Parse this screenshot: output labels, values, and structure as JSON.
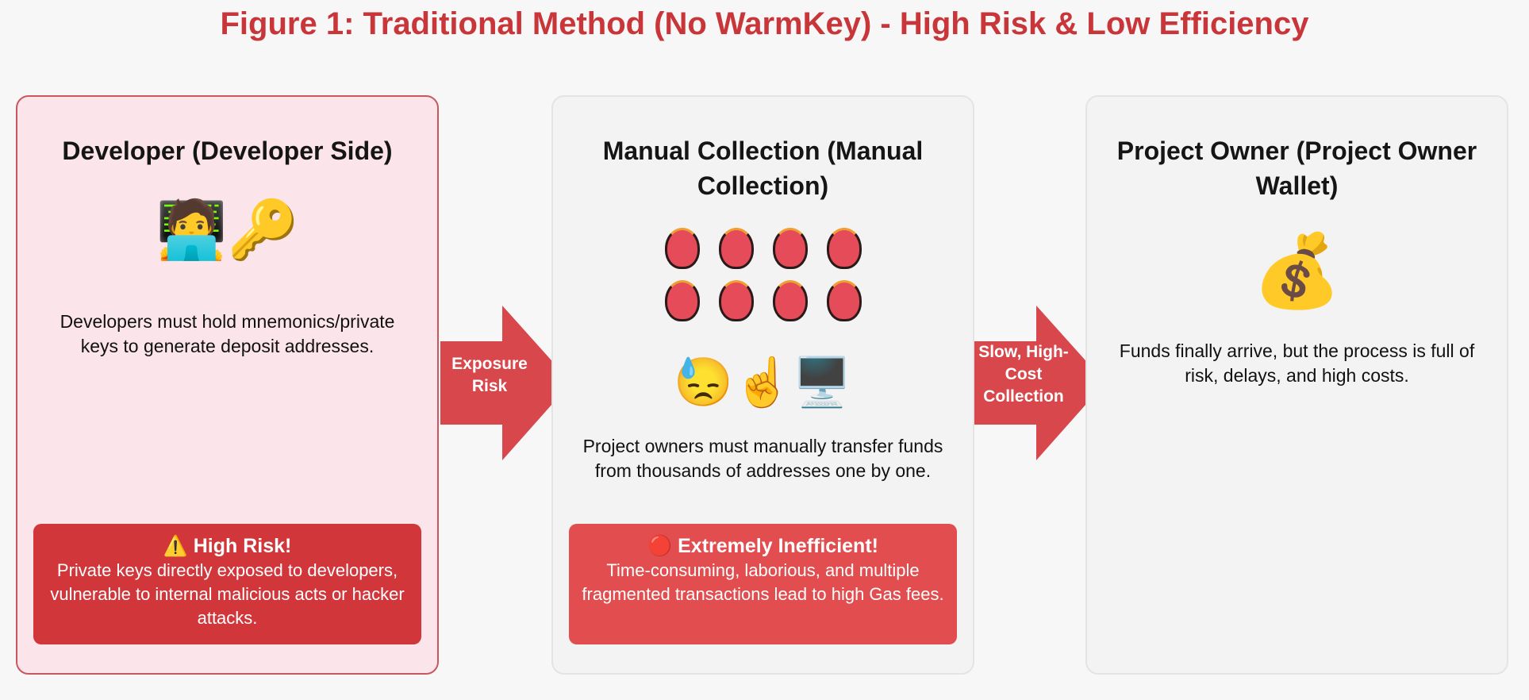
{
  "title": "Figure 1: Traditional Method (No WarmKey) - High Risk & Low Efficiency",
  "colors": {
    "accent": "#c9363a",
    "alert_dark": "#d1363a",
    "alert_light": "#e24d4f",
    "card_pink": "#fce5ea",
    "card_gray": "#f3f3f3"
  },
  "cards": [
    {
      "title": "Developer (Developer Side)",
      "icons": [
        "🧑‍💻",
        "🔑"
      ],
      "description": "Developers must hold mnemonics/private keys to generate deposit addresses.",
      "alert": {
        "icon": "⚠️",
        "heading": "High Risk!",
        "body": "Private keys directly exposed to developers, vulnerable to internal malicious acts or hacker attacks."
      }
    },
    {
      "title": "Manual Collection (Manual Collection)",
      "icons": [
        "😓",
        "☝️",
        "🖥️"
      ],
      "grid_icon": "wallet-head-icon",
      "description": "Project owners must manually transfer funds from thousands of addresses one by one.",
      "alert": {
        "icon": "🔴",
        "heading": "Extremely Inefficient!",
        "body": "Time-consuming, laborious, and multiple fragmented transactions lead to high Gas fees."
      }
    },
    {
      "title": "Project Owner (Project Owner Wallet)",
      "icons": [
        "💰"
      ],
      "description": "Funds finally arrive, but the process is full of risk, delays, and high costs."
    }
  ],
  "arrows": [
    {
      "label": "Exposure Risk"
    },
    {
      "label": "Slow, High-Cost Collection"
    }
  ]
}
